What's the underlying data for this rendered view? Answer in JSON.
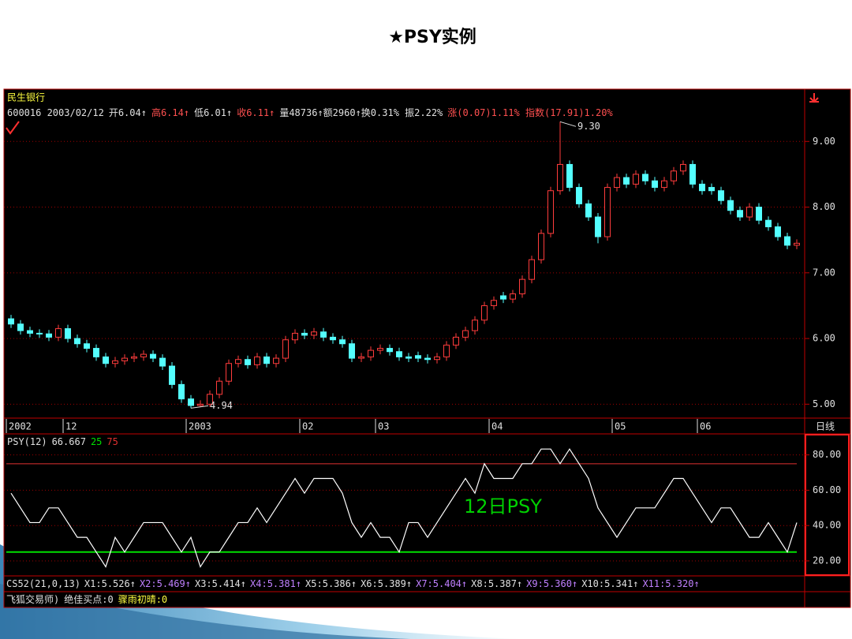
{
  "slide": {
    "title": "★PSY实例"
  },
  "chart_data": [
    {
      "type": "candlestick",
      "stock_name": "民生银行",
      "info": [
        {
          "text": "600016 2003/02/12",
          "color": "#e0e0e0"
        },
        {
          "text": "开6.04↑",
          "color": "#e0e0e0"
        },
        {
          "text": "高6.14↑",
          "color": "#ff5050"
        },
        {
          "text": "低6.01↑",
          "color": "#e0e0e0"
        },
        {
          "text": "收6.11↑",
          "color": "#ff5050"
        },
        {
          "text": "量48736↑额2960↑换0.31% 振2.22%",
          "color": "#e0e0e0"
        },
        {
          "text": "涨(0.07)1.11% 指数(17.91)1.20%",
          "color": "#ff5050"
        }
      ],
      "categories": [
        "2002",
        null,
        null,
        null,
        null,
        null,
        "12",
        null,
        null,
        null,
        null,
        null,
        null,
        null,
        null,
        null,
        null,
        null,
        null,
        "2003",
        null,
        null,
        null,
        null,
        null,
        null,
        null,
        null,
        null,
        null,
        null,
        "02",
        null,
        null,
        null,
        null,
        null,
        null,
        null,
        "03",
        null,
        null,
        null,
        null,
        null,
        null,
        null,
        null,
        null,
        null,
        null,
        "04",
        null,
        null,
        null,
        null,
        null,
        null,
        null,
        null,
        null,
        null,
        null,
        null,
        "05",
        null,
        null,
        null,
        null,
        null,
        null,
        null,
        null,
        "06",
        null,
        null,
        null,
        null,
        null,
        null,
        null,
        null,
        null,
        null
      ],
      "open": [
        6.3,
        6.22,
        6.12,
        6.08,
        6.07,
        6.02,
        6.15,
        6.0,
        5.92,
        5.85,
        5.72,
        5.62,
        5.66,
        5.7,
        5.72,
        5.76,
        5.7,
        5.58,
        5.3,
        5.08,
        4.98,
        5.0,
        5.15,
        5.35,
        5.62,
        5.68,
        5.6,
        5.72,
        5.62,
        5.7,
        5.98,
        6.08,
        6.05,
        6.1,
        6.02,
        5.98,
        5.92,
        5.7,
        5.72,
        5.82,
        5.85,
        5.8,
        5.72,
        5.74,
        5.7,
        5.68,
        5.72,
        5.9,
        6.02,
        6.12,
        6.28,
        6.5,
        6.65,
        6.6,
        6.68,
        6.9,
        7.2,
        7.6,
        8.25,
        8.65,
        8.3,
        8.05,
        7.85,
        7.55,
        8.3,
        8.45,
        8.35,
        8.5,
        8.4,
        8.3,
        8.4,
        8.55,
        8.65,
        8.35,
        8.3,
        8.25,
        8.1,
        7.95,
        7.85,
        8.0,
        7.8,
        7.7,
        7.55,
        7.42
      ],
      "high": [
        6.36,
        6.28,
        6.18,
        6.14,
        6.13,
        6.21,
        6.21,
        6.06,
        5.98,
        5.91,
        5.78,
        5.72,
        5.76,
        5.78,
        5.82,
        5.82,
        5.76,
        5.64,
        5.36,
        5.14,
        5.06,
        5.21,
        5.41,
        5.68,
        5.74,
        5.74,
        5.78,
        5.78,
        5.76,
        6.04,
        6.14,
        6.14,
        6.16,
        6.16,
        6.08,
        6.04,
        5.98,
        5.78,
        5.88,
        5.91,
        5.91,
        5.86,
        5.78,
        5.8,
        5.76,
        5.78,
        5.96,
        6.08,
        6.18,
        6.34,
        6.56,
        6.64,
        6.71,
        6.74,
        6.96,
        7.26,
        7.66,
        8.31,
        9.3,
        8.71,
        8.36,
        8.11,
        7.91,
        8.36,
        8.51,
        8.51,
        8.56,
        8.56,
        8.46,
        8.46,
        8.61,
        8.71,
        8.71,
        8.41,
        8.36,
        8.31,
        8.16,
        8.01,
        8.06,
        8.06,
        7.86,
        7.76,
        7.61,
        7.51
      ],
      "low": [
        6.16,
        6.06,
        6.02,
        6.01,
        5.96,
        5.96,
        5.94,
        5.86,
        5.79,
        5.66,
        5.56,
        5.56,
        5.6,
        5.64,
        5.66,
        5.64,
        5.52,
        5.24,
        5.02,
        4.94,
        4.96,
        4.96,
        5.09,
        5.29,
        5.56,
        5.54,
        5.54,
        5.56,
        5.56,
        5.64,
        5.92,
        5.99,
        5.99,
        5.96,
        5.92,
        5.86,
        5.64,
        5.64,
        5.66,
        5.76,
        5.74,
        5.66,
        5.64,
        5.64,
        5.62,
        5.62,
        5.66,
        5.84,
        5.96,
        6.06,
        6.22,
        6.44,
        6.54,
        6.54,
        6.62,
        6.84,
        7.14,
        7.54,
        8.19,
        8.24,
        7.99,
        7.79,
        7.45,
        7.49,
        8.24,
        8.29,
        8.29,
        8.34,
        8.24,
        8.24,
        8.34,
        8.49,
        8.29,
        8.19,
        8.19,
        8.04,
        7.89,
        7.79,
        7.79,
        7.74,
        7.64,
        7.49,
        7.36,
        7.36
      ],
      "close": [
        6.22,
        6.12,
        6.08,
        6.07,
        6.02,
        6.15,
        6.0,
        5.92,
        5.85,
        5.72,
        5.62,
        5.66,
        5.7,
        5.72,
        5.76,
        5.7,
        5.58,
        5.3,
        5.08,
        4.98,
        5.0,
        5.15,
        5.35,
        5.62,
        5.68,
        5.6,
        5.72,
        5.62,
        5.7,
        5.98,
        6.08,
        6.05,
        6.1,
        6.02,
        5.98,
        5.92,
        5.7,
        5.72,
        5.82,
        5.85,
        5.8,
        5.72,
        5.7,
        5.7,
        5.68,
        5.72,
        5.9,
        6.02,
        6.12,
        6.28,
        6.5,
        6.58,
        6.6,
        6.68,
        6.9,
        7.2,
        7.6,
        8.25,
        8.65,
        8.3,
        8.05,
        7.85,
        7.55,
        8.3,
        8.45,
        8.35,
        8.5,
        8.4,
        8.3,
        8.4,
        8.55,
        8.65,
        8.35,
        8.25,
        8.25,
        8.1,
        7.95,
        7.85,
        8.0,
        7.8,
        7.7,
        7.55,
        7.42,
        7.45
      ],
      "up_color": "#ff3c3c",
      "down_color": "#54ffff",
      "high_label": "9.30",
      "low_label": "4.94",
      "period_label": "日线",
      "ylim": [
        4.8,
        9.7
      ],
      "yticks": [
        {
          "value": 5,
          "label": "5.00"
        },
        {
          "value": 6,
          "label": "6.00"
        },
        {
          "value": 7,
          "label": "7.00"
        },
        {
          "value": 8,
          "label": "8.00"
        },
        {
          "value": 9,
          "label": "9.00"
        }
      ],
      "grid": true
    },
    {
      "type": "line",
      "name": "PSY(12)",
      "current_value": 66.667,
      "color": "#ffffff",
      "values": [
        58.33,
        50,
        41.67,
        41.67,
        50,
        50,
        41.67,
        33.33,
        33.33,
        25,
        16.67,
        33.33,
        25,
        33.33,
        41.67,
        41.67,
        41.67,
        33.33,
        25,
        33.33,
        16.67,
        25,
        25,
        33.33,
        41.67,
        41.67,
        50,
        41.67,
        50,
        58.33,
        66.67,
        58.33,
        66.67,
        66.67,
        66.67,
        58.33,
        41.67,
        33.33,
        41.67,
        33.33,
        33.33,
        25,
        41.67,
        41.67,
        33.33,
        41.67,
        50,
        58.33,
        66.67,
        58.33,
        75,
        66.67,
        66.67,
        66.67,
        75,
        75,
        83.33,
        83.33,
        75,
        83.33,
        75,
        66.67,
        50,
        41.67,
        33.33,
        41.67,
        50,
        50,
        50,
        58.33,
        66.67,
        66.67,
        58.33,
        50,
        41.67,
        50,
        50,
        41.67,
        33.33,
        33.33,
        41.67,
        33.33,
        25,
        41.67
      ],
      "thresholds": [
        {
          "value": 25,
          "color": "#00e000"
        },
        {
          "value": 75,
          "color": "#e03030"
        }
      ],
      "annotation": "12日PSY",
      "annotation_color": "#00d000",
      "ylim": [
        11.5,
        91
      ],
      "yticks": [
        {
          "value": 20,
          "label": "20.00"
        },
        {
          "value": 40,
          "label": "40.00"
        },
        {
          "value": 60,
          "label": "60.00"
        },
        {
          "value": 80,
          "label": "80.00"
        }
      ],
      "grid": true
    }
  ],
  "footer": {
    "rows": [
      [
        {
          "text": "CS52(21,0,13)",
          "color": "#e0e0e0"
        },
        {
          "text": "X1:5.526↑",
          "color": "#e0e0e0"
        },
        {
          "text": "X2:5.469↑",
          "color": "#c080ff"
        },
        {
          "text": "X3:5.414↑",
          "color": "#e0e0e0"
        },
        {
          "text": "X4:5.381↑",
          "color": "#c080ff"
        },
        {
          "text": "X5:5.386↑",
          "color": "#e0e0e0"
        },
        {
          "text": "X6:5.389↑",
          "color": "#e0e0e0"
        },
        {
          "text": "X7:5.404↑",
          "color": "#c080ff"
        },
        {
          "text": "X8:5.387↑",
          "color": "#e0e0e0"
        },
        {
          "text": "X9:5.360↑",
          "color": "#c080ff"
        },
        {
          "text": "X10:5.341↑",
          "color": "#e0e0e0"
        },
        {
          "text": "X11:5.320↑",
          "color": "#c080ff"
        }
      ],
      [
        {
          "text": "飞狐交易师)",
          "color": "#e0e0e0"
        },
        {
          "text": "绝佳买点:0",
          "color": "#e0e0e0"
        },
        {
          "text": "骤雨初晴:0",
          "color": "#ffff40"
        }
      ]
    ]
  }
}
